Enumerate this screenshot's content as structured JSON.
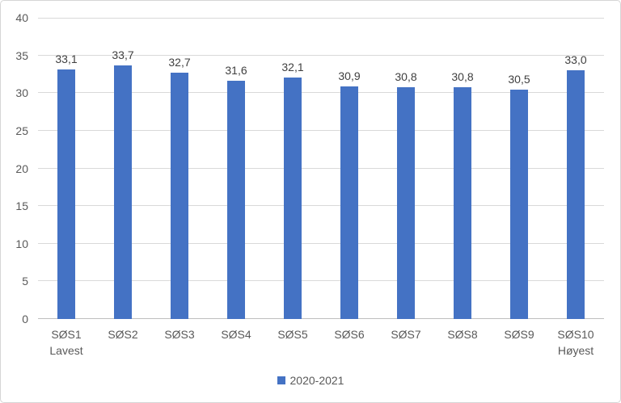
{
  "colors": {
    "bar": "#4472C4",
    "gridline": "#D9D9D9",
    "axis_line": "#BFBFBF",
    "value_label_text": "#404040",
    "axis_text": "#595959",
    "chart_border": "#D6D6D6",
    "background": "#FFFFFF"
  },
  "chart_data": {
    "type": "bar",
    "title": "",
    "xlabel": "",
    "ylabel": "",
    "categories": [
      "SØS1",
      "SØS2",
      "SØS3",
      "SØS4",
      "SØS5",
      "SØS6",
      "SØS7",
      "SØS8",
      "SØS9",
      "SØS10"
    ],
    "category_sublabels": [
      "Lavest",
      "",
      "",
      "",
      "",
      "",
      "",
      "",
      "",
      "Høyest"
    ],
    "series": [
      {
        "name": "2020-2021",
        "color": "#4472C4",
        "values": [
          33.1,
          33.7,
          32.7,
          31.6,
          32.1,
          30.9,
          30.8,
          30.8,
          30.5,
          33.0
        ]
      }
    ],
    "value_labels": [
      "33,1",
      "33,7",
      "32,7",
      "31,6",
      "32,1",
      "30,9",
      "30,8",
      "30,8",
      "30,5",
      "33,0"
    ],
    "ylim": [
      0,
      40
    ],
    "yticks": [
      0,
      5,
      10,
      15,
      20,
      25,
      30,
      35,
      40
    ],
    "grid": true,
    "legend_position": "bottom"
  }
}
